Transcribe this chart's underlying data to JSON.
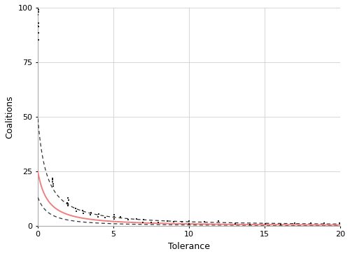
{
  "title": "",
  "xlabel": "Tolerance",
  "ylabel": "Coalitions",
  "xlim": [
    0,
    20
  ],
  "ylim": [
    0,
    100
  ],
  "x_ticks": [
    0,
    5,
    10,
    15,
    20
  ],
  "y_ticks": [
    0,
    25,
    50,
    75,
    100
  ],
  "fit_color": "#f08080",
  "ci_color": "#333333",
  "background_color": "#ffffff",
  "grid_color": "#d0d0d0",
  "scatter_color": "#222222",
  "fit_a": 20.0,
  "fit_b": 1.3,
  "fit_c": 0.85,
  "ci_upper_a": 32.0,
  "ci_upper_b": 1.2,
  "ci_upper_c": 0.7,
  "ci_lower_a": 13.0,
  "ci_lower_b": 1.45,
  "ci_lower_c": 1.0,
  "scatter_points": [
    [
      0.0,
      100
    ],
    [
      0.0,
      99
    ],
    [
      0.0,
      98
    ],
    [
      0.0,
      97
    ],
    [
      0.0,
      96
    ],
    [
      0.0,
      95
    ],
    [
      0.0,
      94
    ],
    [
      0.0,
      93
    ],
    [
      0.0,
      92
    ],
    [
      0.0,
      91
    ],
    [
      0.0,
      90
    ],
    [
      0.0,
      88
    ],
    [
      0.0,
      85
    ],
    [
      0.0,
      82
    ],
    [
      1.0,
      22
    ],
    [
      1.0,
      21
    ],
    [
      1.0,
      20
    ],
    [
      1.0,
      19
    ],
    [
      1.0,
      18
    ],
    [
      2.0,
      13
    ],
    [
      2.0,
      12
    ],
    [
      2.0,
      11
    ],
    [
      2.0,
      10
    ],
    [
      2.0,
      9
    ],
    [
      2.5,
      8
    ],
    [
      2.5,
      7
    ],
    [
      3.0,
      7
    ],
    [
      3.0,
      6
    ],
    [
      3.5,
      6
    ],
    [
      3.5,
      5
    ],
    [
      4.0,
      5
    ],
    [
      4.0,
      4
    ],
    [
      4.5,
      4
    ],
    [
      5.0,
      5
    ],
    [
      5.0,
      4
    ],
    [
      5.0,
      3
    ],
    [
      5.5,
      4
    ],
    [
      6.0,
      3
    ],
    [
      6.5,
      3
    ],
    [
      7.0,
      3
    ],
    [
      7.0,
      2
    ],
    [
      7.5,
      2
    ],
    [
      8.0,
      2
    ],
    [
      8.5,
      2
    ],
    [
      9.0,
      2
    ],
    [
      9.5,
      2
    ],
    [
      10.0,
      2
    ],
    [
      10.0,
      1
    ],
    [
      11.0,
      2
    ],
    [
      12.0,
      2
    ],
    [
      13.0,
      1
    ],
    [
      14.0,
      1
    ],
    [
      15.0,
      1
    ],
    [
      16.0,
      1
    ],
    [
      17.0,
      1
    ],
    [
      18.0,
      1
    ],
    [
      19.0,
      1
    ],
    [
      20.0,
      1
    ]
  ]
}
